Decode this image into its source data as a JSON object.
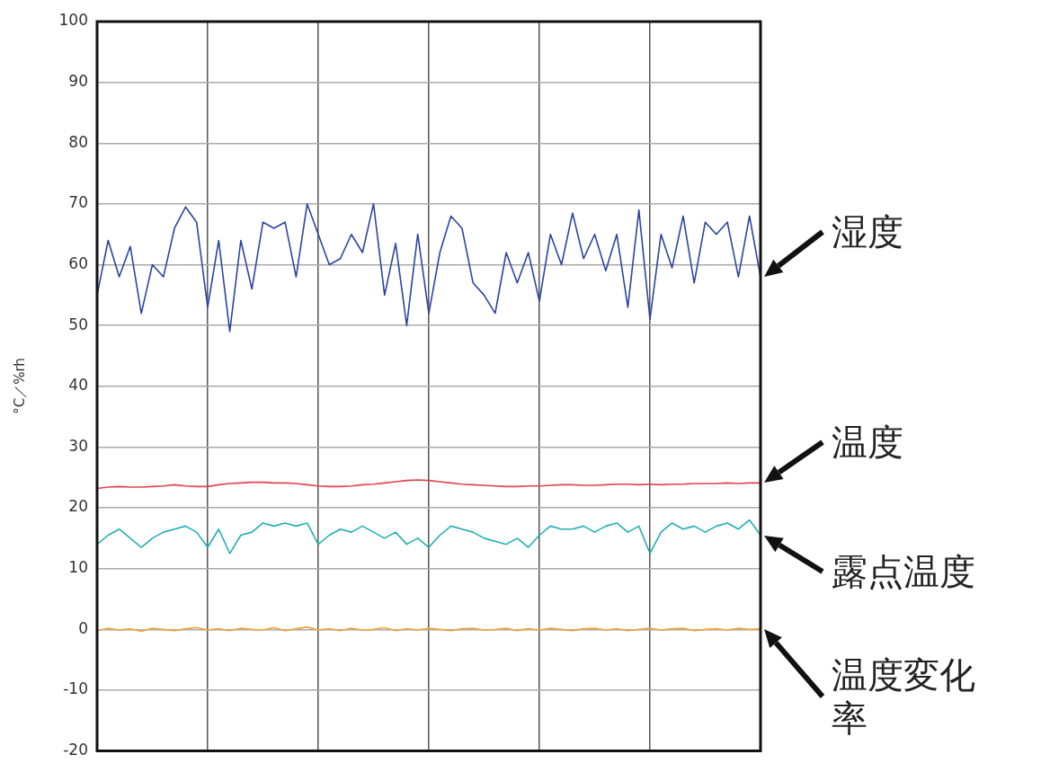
{
  "chart_data": {
    "type": "line",
    "ylabel": "°C／%rh",
    "categories": [
      null,
      null,
      null,
      null,
      null,
      null,
      null,
      null,
      null,
      null,
      null,
      null,
      null,
      null,
      null,
      null,
      null,
      null,
      null,
      null,
      null,
      null,
      null,
      null,
      null,
      null,
      null,
      null,
      null,
      null,
      null,
      null,
      null,
      null,
      null,
      null,
      null,
      null,
      null,
      null,
      null,
      null,
      null,
      null,
      null,
      null,
      null,
      null,
      null,
      null,
      null,
      null,
      null,
      null,
      null,
      null,
      null,
      null,
      null,
      null,
      null
    ],
    "ylim": [
      -20,
      100
    ],
    "yticks": [
      -20,
      -10,
      0,
      10,
      20,
      30,
      40,
      50,
      60,
      70,
      80,
      90,
      100
    ],
    "grid": true,
    "marker": "none",
    "line_style": "solid",
    "series": [
      {
        "name": "湿度",
        "color": "#2c44a0",
        "values": [
          55,
          64,
          58,
          63,
          52,
          60,
          58,
          66,
          69.5,
          67,
          53,
          64,
          49,
          64,
          56,
          67,
          66,
          67,
          58,
          70,
          65,
          60,
          61,
          65,
          62,
          70,
          55,
          63.5,
          50,
          65,
          52,
          62,
          68,
          66,
          57,
          55,
          52,
          62,
          57,
          62,
          54,
          65,
          60,
          68.5,
          61,
          65,
          59,
          65,
          53,
          69,
          51,
          65,
          59.5,
          68,
          57,
          67,
          65,
          67,
          58,
          68,
          58
        ]
      },
      {
        "name": "温度",
        "color": "#e0434f",
        "values": [
          23.2,
          23.4,
          23.5,
          23.4,
          23.4,
          23.5,
          23.6,
          23.8,
          23.6,
          23.5,
          23.5,
          23.8,
          24.0,
          24.1,
          24.2,
          24.2,
          24.1,
          24.1,
          24.0,
          23.8,
          23.6,
          23.5,
          23.5,
          23.6,
          23.8,
          23.9,
          24.1,
          24.3,
          24.5,
          24.6,
          24.5,
          24.3,
          24.1,
          23.9,
          23.8,
          23.7,
          23.6,
          23.5,
          23.5,
          23.6,
          23.6,
          23.7,
          23.8,
          23.8,
          23.7,
          23.7,
          23.8,
          23.9,
          23.9,
          23.8,
          23.9,
          23.8,
          23.9,
          23.9,
          24.0,
          24.0,
          24.0,
          24.1,
          24.0,
          24.1,
          24.1
        ]
      },
      {
        "name": "露点温度",
        "color": "#22afb3",
        "values": [
          14,
          15.5,
          16.5,
          15,
          13.5,
          15,
          16,
          16.5,
          17,
          16,
          13.5,
          16.5,
          12.5,
          15.5,
          16,
          17.5,
          17,
          17.5,
          17,
          17.5,
          14,
          15.5,
          16.5,
          16,
          17,
          16,
          15,
          16,
          14,
          15,
          13.5,
          15.5,
          17,
          16.5,
          16,
          15,
          14.5,
          14,
          15,
          13.5,
          15.5,
          17,
          16.5,
          16.5,
          17,
          16,
          17,
          17.5,
          16,
          17,
          12.5,
          16,
          17.5,
          16.5,
          17,
          16,
          17,
          17.5,
          16.5,
          18,
          15.5
        ]
      },
      {
        "name": "温度変化率",
        "color": "#f0a23a",
        "values": [
          -0.2,
          0.2,
          -0.1,
          0.1,
          -0.3,
          0.2,
          0,
          -0.2,
          0.1,
          0.3,
          -0.1,
          0.1,
          -0.2,
          0.2,
          0,
          -0.1,
          0.3,
          -0.2,
          0.1,
          0.4,
          -0.1,
          0.1,
          -0.2,
          0.2,
          -0.1,
          0,
          0.3,
          -0.2,
          0.1,
          -0.1,
          0.2,
          0,
          -0.2,
          0.1,
          0.2,
          -0.1,
          0,
          0.2,
          -0.2,
          0.1,
          -0.1,
          0.2,
          0,
          -0.2,
          0.1,
          0.2,
          -0.1,
          0.1,
          -0.2,
          0,
          0.2,
          -0.1,
          0.1,
          0.2,
          -0.2,
          0,
          0.1,
          -0.1,
          0.2,
          0,
          0.1
        ]
      }
    ]
  }
}
